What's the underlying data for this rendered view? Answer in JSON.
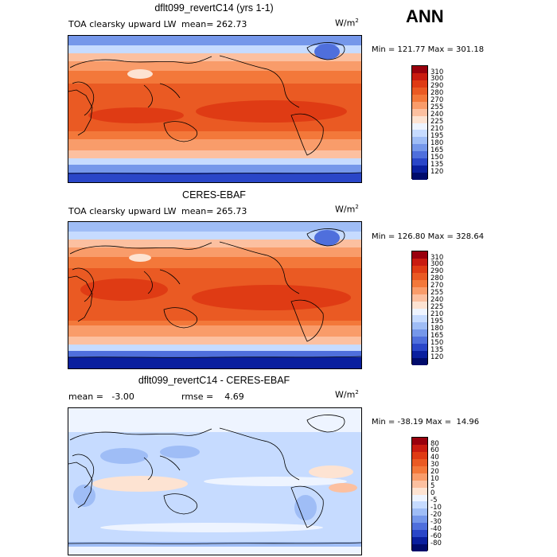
{
  "season": "ANN",
  "units": "W/m",
  "units_sup": "2",
  "panels": [
    {
      "title": "dflt099_revertC14 (yrs 1-1)",
      "variable": "TOA clearsky upward LW",
      "mean_text": "mean= 262.73",
      "minmax_text": "Min = 121.77 Max = 301.18",
      "colorbar_levels": [
        "310",
        "300",
        "290",
        "280",
        "270",
        "255",
        "240",
        "225",
        "210",
        "195",
        "180",
        "165",
        "150",
        "135",
        "120"
      ],
      "colors": [
        "#99000d",
        "#c91b10",
        "#df3b14",
        "#ea5a23",
        "#f3783a",
        "#f99c6a",
        "#fcc0a0",
        "#fde3d2",
        "#eef4ff",
        "#c6dbff",
        "#9fbdf6",
        "#7597ea",
        "#4f6fdc",
        "#2a46c8",
        "#0a1f9e",
        "#000b6b"
      ]
    },
    {
      "title": "CERES-EBAF",
      "variable": "TOA clearsky upward LW",
      "mean_text": "mean= 265.73",
      "minmax_text": "Min = 126.80 Max = 328.64",
      "colorbar_levels": [
        "310",
        "300",
        "290",
        "280",
        "270",
        "255",
        "240",
        "225",
        "210",
        "195",
        "180",
        "165",
        "150",
        "135",
        "120"
      ],
      "colors": [
        "#99000d",
        "#c91b10",
        "#df3b14",
        "#ea5a23",
        "#f3783a",
        "#f99c6a",
        "#fcc0a0",
        "#fde3d2",
        "#eef4ff",
        "#c6dbff",
        "#9fbdf6",
        "#7597ea",
        "#4f6fdc",
        "#2a46c8",
        "#0a1f9e",
        "#000b6b"
      ]
    },
    {
      "title": "dflt099_revertC14 - CERES-EBAF",
      "mean_text": "mean =   -3.00",
      "rmse_text": "rmse =    4.69",
      "minmax_text": "Min = -38.19 Max =  14.96",
      "colorbar_levels": [
        "80",
        "60",
        "40",
        "30",
        "20",
        "10",
        "5",
        "0",
        "-5",
        "-10",
        "-20",
        "-30",
        "-40",
        "-60",
        "-80"
      ],
      "colors": [
        "#99000d",
        "#c91b10",
        "#df3b14",
        "#ea5a23",
        "#f3783a",
        "#f99c6a",
        "#fcc0a0",
        "#fde3d2",
        "#eef4ff",
        "#c6dbff",
        "#9fbdf6",
        "#7597ea",
        "#4f6fdc",
        "#2a46c8",
        "#0a1f9e",
        "#000b6b"
      ]
    }
  ]
}
